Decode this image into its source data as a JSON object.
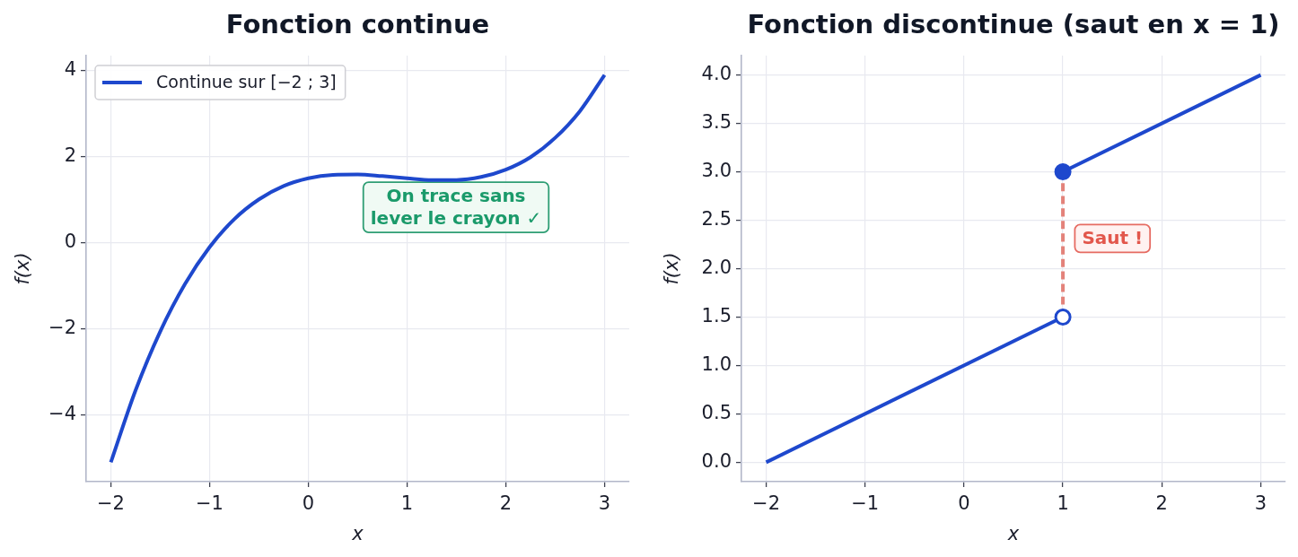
{
  "chart_data": [
    {
      "type": "line",
      "title": "Fonction continue",
      "xlabel": "x",
      "ylabel": "f(x)",
      "x": [
        -2,
        -1.75,
        -1.5,
        -1.25,
        -1,
        -0.75,
        -0.5,
        -0.25,
        0,
        0.25,
        0.5,
        0.75,
        1,
        1.25,
        1.5,
        1.75,
        2,
        2.25,
        2.5,
        2.75,
        3
      ],
      "series": [
        {
          "name": "Continue sur [−2 ; 3]",
          "color": "#1e48cd",
          "values": [
            -5.1,
            -3.43,
            -2.06,
            -0.96,
            -0.1,
            0.55,
            1.01,
            1.32,
            1.5,
            1.58,
            1.59,
            1.55,
            1.5,
            1.46,
            1.46,
            1.53,
            1.7,
            1.99,
            2.44,
            3.06,
            3.9
          ]
        }
      ],
      "xlim": [
        -2.25,
        3.25
      ],
      "ylim": [
        -5.55,
        4.35
      ],
      "xticks": [
        -2,
        -1,
        0,
        1,
        2,
        3
      ],
      "yticks": [
        -4,
        -2,
        0,
        2,
        4
      ],
      "grid": true,
      "legend": "top left",
      "annotations": [
        "On trace sans\nlever le crayon ✓"
      ]
    },
    {
      "type": "line",
      "title": "Fonction discontinue (saut en x = 1)",
      "xlabel": "x",
      "ylabel": "f(x)",
      "series": [
        {
          "x": [
            -2,
            1
          ],
          "values": [
            0,
            1.5
          ],
          "color": "#1e48cd"
        },
        {
          "x": [
            1,
            3
          ],
          "values": [
            3,
            4
          ],
          "color": "#1e48cd"
        },
        {
          "type": "line",
          "x": [
            1,
            1
          ],
          "values": [
            1.5,
            3
          ],
          "color": "#e3827a",
          "line_style": "dashed"
        },
        {
          "type": "scatter",
          "x": [
            1
          ],
          "values": [
            3
          ],
          "color": "#1e48cd",
          "marker": "circle"
        },
        {
          "type": "scatter",
          "x": [
            1
          ],
          "values": [
            1.5
          ],
          "color": "#1e48cd",
          "colors": [
            "#ffffff"
          ],
          "marker": "circle"
        }
      ],
      "xlim": [
        -2.25,
        3.25
      ],
      "ylim": [
        -0.2,
        4.2
      ],
      "xticks": [
        -2,
        -1,
        0,
        1,
        2,
        3
      ],
      "yticks": [
        {
          "value": 0,
          "label": "0.0"
        },
        {
          "value": 0.5,
          "label": "0.5"
        },
        {
          "value": 1,
          "label": "1.0"
        },
        {
          "value": 1.5,
          "label": "1.5"
        },
        {
          "value": 2,
          "label": "2.0"
        },
        {
          "value": 2.5,
          "label": "2.5"
        },
        {
          "value": 3,
          "label": "3.0"
        },
        {
          "value": 3.5,
          "label": "3.5"
        },
        {
          "value": 4,
          "label": "4.0"
        }
      ],
      "grid": true,
      "annotations": [
        "Saut !"
      ]
    }
  ]
}
